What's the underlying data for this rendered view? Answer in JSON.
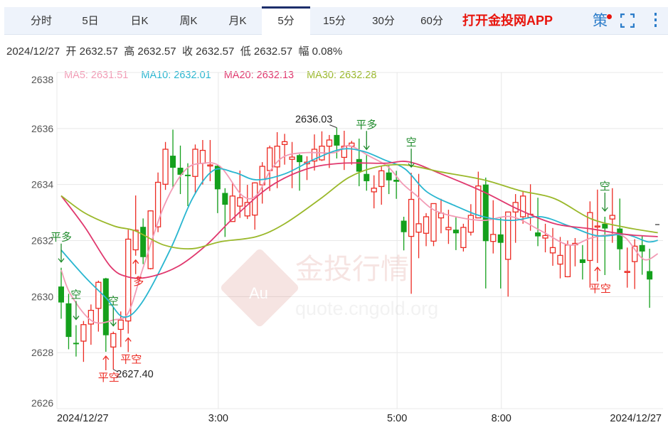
{
  "tabs": [
    {
      "label": "分时",
      "active": false
    },
    {
      "label": "5日",
      "active": false
    },
    {
      "label": "日K",
      "active": false
    },
    {
      "label": "周K",
      "active": false
    },
    {
      "label": "月K",
      "active": false
    },
    {
      "label": "5分",
      "active": true
    },
    {
      "label": "15分",
      "active": false
    },
    {
      "label": "30分",
      "active": false
    },
    {
      "label": "60分",
      "active": false
    }
  ],
  "header": {
    "app_link": "打开金投网APP",
    "strategy_label": "策",
    "icons": [
      "fullscreen-icon",
      "more-vertical-icon"
    ]
  },
  "info": {
    "date": "2024/12/27",
    "open_label": "开",
    "open": "2632.57",
    "high_label": "高",
    "high": "2632.57",
    "close_label": "收",
    "close": "2632.57",
    "low_label": "低",
    "low": "2632.57",
    "change_label": "幅",
    "change": "0.08%"
  },
  "ma_legend": [
    {
      "text": "MA5: 2631.51",
      "color": "#f29bb5"
    },
    {
      "text": "MA10: 2632.01",
      "color": "#29b6d0"
    },
    {
      "text": "MA20: 2632.13",
      "color": "#e0386e"
    },
    {
      "text": "MA30: 2632.28",
      "color": "#9ab82a"
    }
  ],
  "watermark": {
    "cn": "金投行情",
    "url": "quote.cngold.org",
    "logo": "Au"
  },
  "colors": {
    "up": "#ec2b23",
    "down": "#14a01c",
    "grid": "#e8e8e8",
    "tab_active_border": "#1c2e6b"
  },
  "chart_data": {
    "type": "candlestick",
    "interval": "5分",
    "ylim": [
      2626,
      2638
    ],
    "y_ticks": [
      "2638",
      "2636",
      "2634",
      "2632",
      "2630",
      "2628",
      "2626"
    ],
    "x_ticks": [
      {
        "label": "2024/12/27",
        "i": 0
      },
      {
        "label": "3:00",
        "i": 21
      },
      {
        "label": "5:00",
        "i": 45
      },
      {
        "label": "8:00",
        "i": 59
      },
      {
        "label": "2024/12/27",
        "i": 79
      }
    ],
    "grid": true,
    "ohlc": [
      [
        2630.36,
        2631.03,
        2629.21,
        2629.79
      ],
      [
        2629.76,
        2630.1,
        2628.12,
        2628.56
      ],
      [
        2628.35,
        2628.98,
        2627.86,
        2628.3
      ],
      [
        2628.41,
        2629.13,
        2627.67,
        2629.0
      ],
      [
        2629.02,
        2629.72,
        2628.28,
        2629.51
      ],
      [
        2629.58,
        2630.57,
        2628.75,
        2630.51
      ],
      [
        2630.65,
        2630.67,
        2628.03,
        2628.62
      ],
      [
        2628.2,
        2628.75,
        2627.4,
        2628.68
      ],
      [
        2628.83,
        2629.47,
        2628.2,
        2629.16
      ],
      [
        2629.13,
        2632.39,
        2628.68,
        2632.05
      ],
      [
        2631.67,
        2633.61,
        2631.46,
        2632.37
      ],
      [
        2632.49,
        2632.79,
        2631.16,
        2631.41
      ],
      [
        2631.0,
        2633.08,
        2630.97,
        2633.06
      ],
      [
        2632.49,
        2634.43,
        2632.3,
        2634.08
      ],
      [
        2634.01,
        2635.52,
        2633.81,
        2635.26
      ],
      [
        2635.03,
        2635.96,
        2633.87,
        2634.6
      ],
      [
        2634.6,
        2635.39,
        2633.66,
        2634.35
      ],
      [
        2634.35,
        2634.76,
        2633.23,
        2634.3
      ],
      [
        2634.29,
        2635.43,
        2633.7,
        2635.26
      ],
      [
        2634.76,
        2635.59,
        2634.0,
        2635.22
      ],
      [
        2634.67,
        2635.59,
        2634.12,
        2634.7
      ],
      [
        2634.67,
        2634.69,
        2632.98,
        2633.83
      ],
      [
        2633.7,
        2633.87,
        2632.13,
        2633.28
      ],
      [
        2632.68,
        2634.04,
        2632.68,
        2633.59
      ],
      [
        2633.23,
        2634.5,
        2632.81,
        2633.53
      ],
      [
        2632.88,
        2633.99,
        2632.77,
        2633.36
      ],
      [
        2632.91,
        2634.08,
        2632.39,
        2634.06
      ],
      [
        2633.99,
        2634.8,
        2633.32,
        2634.65
      ],
      [
        2634.5,
        2635.39,
        2633.77,
        2635.31
      ],
      [
        2634.63,
        2635.87,
        2633.87,
        2635.37
      ],
      [
        2635.43,
        2635.81,
        2634.71,
        2635.53
      ],
      [
        2634.9,
        2635.52,
        2633.87,
        2634.98
      ],
      [
        2635.05,
        2635.09,
        2633.78,
        2634.8
      ],
      [
        2634.74,
        2635.01,
        2634.16,
        2634.8
      ],
      [
        2634.84,
        2635.79,
        2634.5,
        2635.26
      ],
      [
        2634.88,
        2635.9,
        2634.84,
        2635.37
      ],
      [
        2635.37,
        2635.77,
        2634.59,
        2635.59
      ],
      [
        2635.77,
        2636.03,
        2634.93,
        2635.39
      ],
      [
        2634.97,
        2635.92,
        2634.52,
        2635.37
      ],
      [
        2635.37,
        2635.56,
        2634.71,
        2635.48
      ],
      [
        2634.91,
        2635.64,
        2633.94,
        2634.46
      ],
      [
        2634.38,
        2635.05,
        2633.78,
        2634.12
      ],
      [
        2633.74,
        2634.33,
        2633.15,
        2633.87
      ],
      [
        2633.93,
        2634.67,
        2633.28,
        2634.49
      ],
      [
        2634.43,
        2634.67,
        2633.66,
        2634.15
      ],
      [
        2634.17,
        2634.49,
        2633.49,
        2634.1
      ],
      [
        2632.71,
        2632.85,
        2631.65,
        2632.3
      ],
      [
        2632.15,
        2634.42,
        2630.1,
        2633.47
      ],
      [
        2632.3,
        2634.38,
        2631.37,
        2632.6
      ],
      [
        2632.26,
        2632.98,
        2631.8,
        2632.85
      ],
      [
        2631.98,
        2633.3,
        2631.8,
        2633.32
      ],
      [
        2632.81,
        2633.49,
        2632.26,
        2632.98
      ],
      [
        2632.39,
        2633.1,
        2631.88,
        2632.47
      ],
      [
        2632.39,
        2632.83,
        2631.66,
        2632.26
      ],
      [
        2631.75,
        2632.6,
        2631.61,
        2632.47
      ],
      [
        2632.3,
        2633.3,
        2632.18,
        2632.9
      ],
      [
        2632.81,
        2634.46,
        2632.81,
        2633.95
      ],
      [
        2634.0,
        2634.25,
        2630.29,
        2631.98
      ],
      [
        2631.97,
        2633.44,
        2631.54,
        2632.22
      ],
      [
        2632.22,
        2632.83,
        2630.29,
        2631.92
      ],
      [
        2631.33,
        2633.02,
        2630.0,
        2633.02
      ],
      [
        2633.02,
        2633.66,
        2631.92,
        2633.36
      ],
      [
        2632.85,
        2633.76,
        2632.6,
        2633.59
      ],
      [
        2632.83,
        2634.01,
        2632.35,
        2632.94
      ],
      [
        2632.29,
        2633.53,
        2631.8,
        2632.15
      ],
      [
        2632.09,
        2632.6,
        2631.58,
        2632.18
      ],
      [
        2631.56,
        2632.45,
        2631.1,
        2631.75
      ],
      [
        2631.16,
        2632.13,
        2630.65,
        2631.47
      ],
      [
        2630.71,
        2632.0,
        2630.69,
        2631.84
      ],
      [
        2631.85,
        2632.09,
        2631.08,
        2631.9
      ],
      [
        2631.33,
        2631.84,
        2630.61,
        2631.2
      ],
      [
        2631.29,
        2633.4,
        2630.32,
        2633.0
      ],
      [
        2632.5,
        2633.82,
        2631.2,
        2632.52
      ],
      [
        2632.6,
        2632.85,
        2630.77,
        2632.43
      ],
      [
        2632.77,
        2633.87,
        2631.92,
        2632.9
      ],
      [
        2632.43,
        2633.5,
        2630.95,
        2631.69
      ],
      [
        2630.88,
        2631.75,
        2630.32,
        2630.9
      ],
      [
        2631.25,
        2632.05,
        2630.27,
        2631.8
      ],
      [
        2631.84,
        2632.18,
        2630.78,
        2631.61
      ],
      [
        2630.91,
        2631.71,
        2629.6,
        2630.61
      ]
    ],
    "ma": [
      {
        "name": "MA5",
        "color": "#f29bb5",
        "points": [
          [
            0,
            2630.95
          ],
          [
            1.3,
            2630.06
          ],
          [
            4.2,
            2629.12
          ],
          [
            7.1,
            2629.17
          ],
          [
            9,
            2629.42
          ],
          [
            10.9,
            2630.95
          ],
          [
            13.8,
            2633.23
          ],
          [
            16.6,
            2634.5
          ],
          [
            19,
            2634.76
          ],
          [
            21.4,
            2634.63
          ],
          [
            24.3,
            2633.61
          ],
          [
            26.2,
            2633.61
          ],
          [
            28.1,
            2634.5
          ],
          [
            30,
            2635.01
          ],
          [
            32.9,
            2635.14
          ],
          [
            36.7,
            2635.14
          ],
          [
            38.6,
            2635.39
          ],
          [
            41.4,
            2635.01
          ],
          [
            43.9,
            2634.63
          ],
          [
            45.8,
            2634.04
          ],
          [
            47.7,
            2633.61
          ],
          [
            50,
            2633.1
          ],
          [
            53,
            2632.85
          ],
          [
            56.7,
            2632.72
          ],
          [
            60.5,
            2632.85
          ],
          [
            64.4,
            2632.35
          ],
          [
            68.2,
            2631.84
          ],
          [
            71.1,
            2632.09
          ],
          [
            74,
            2632.22
          ],
          [
            75.8,
            2632.09
          ],
          [
            78.2,
            2631.33
          ],
          [
            80.1,
            2631.53
          ]
        ]
      },
      {
        "name": "MA10",
        "color": "#29b6d0",
        "points": [
          [
            0,
            2631.66
          ],
          [
            3.2,
            2630.7
          ],
          [
            6.1,
            2629.93
          ],
          [
            8.4,
            2629.27
          ],
          [
            10.9,
            2629.81
          ],
          [
            14.7,
            2631.71
          ],
          [
            17.6,
            2633.49
          ],
          [
            20.4,
            2634.5
          ],
          [
            23.3,
            2634.43
          ],
          [
            26.2,
            2634.17
          ],
          [
            30,
            2634.38
          ],
          [
            33.8,
            2634.88
          ],
          [
            37.6,
            2635.26
          ],
          [
            40.5,
            2635.19
          ],
          [
            43.4,
            2634.88
          ],
          [
            46.2,
            2634.55
          ],
          [
            49.1,
            2633.74
          ],
          [
            53,
            2633.23
          ],
          [
            56.7,
            2632.85
          ],
          [
            60.5,
            2632.72
          ],
          [
            64.4,
            2632.85
          ],
          [
            68.2,
            2632.52
          ],
          [
            72,
            2632.17
          ],
          [
            75.8,
            2632.22
          ],
          [
            78.7,
            2631.96
          ],
          [
            80.1,
            2632.01
          ]
        ]
      },
      {
        "name": "MA20",
        "color": "#e0386e",
        "points": [
          [
            0,
            2633.6
          ],
          [
            3.2,
            2632.47
          ],
          [
            6.6,
            2631.08
          ],
          [
            9,
            2630.7
          ],
          [
            11.8,
            2630.7
          ],
          [
            15.7,
            2631.08
          ],
          [
            19.5,
            2631.84
          ],
          [
            23.3,
            2632.85
          ],
          [
            28.1,
            2633.94
          ],
          [
            32.9,
            2634.55
          ],
          [
            37.6,
            2634.76
          ],
          [
            43.4,
            2634.76
          ],
          [
            46.7,
            2634.81
          ],
          [
            51,
            2634.38
          ],
          [
            56.7,
            2633.74
          ],
          [
            61.5,
            2633.1
          ],
          [
            66.3,
            2632.6
          ],
          [
            71.1,
            2632.42
          ],
          [
            75.8,
            2632.22
          ],
          [
            80.1,
            2632.14
          ]
        ]
      },
      {
        "name": "MA30",
        "color": "#9ab82a",
        "points": [
          [
            0,
            2633.6
          ],
          [
            3.2,
            2632.98
          ],
          [
            7.1,
            2632.52
          ],
          [
            9.9,
            2632.35
          ],
          [
            13.8,
            2631.84
          ],
          [
            17.6,
            2631.71
          ],
          [
            21.4,
            2631.96
          ],
          [
            26.2,
            2632.14
          ],
          [
            30,
            2632.6
          ],
          [
            34.8,
            2633.49
          ],
          [
            38.6,
            2634.25
          ],
          [
            42.4,
            2634.63
          ],
          [
            46.2,
            2634.7
          ],
          [
            51,
            2634.45
          ],
          [
            56.7,
            2634.17
          ],
          [
            61.5,
            2633.79
          ],
          [
            66.3,
            2633.49
          ],
          [
            71.1,
            2632.78
          ],
          [
            75.8,
            2632.47
          ],
          [
            80.1,
            2632.28
          ]
        ]
      }
    ],
    "annotations": {
      "high": {
        "label": "2636.03",
        "i": 37
      },
      "low": {
        "label": "2627.40",
        "i": 7
      },
      "signals": [
        {
          "i": 0,
          "text": "平多",
          "dir": "down",
          "side": "sell"
        },
        {
          "i": 2,
          "text": "空",
          "dir": "down",
          "side": "sell"
        },
        {
          "i": 7,
          "text": "空",
          "dir": "down",
          "side": "sell"
        },
        {
          "i": 6,
          "text": "平空",
          "dir": "up",
          "side": "buy"
        },
        {
          "i": 9,
          "text": "平空",
          "dir": "up",
          "side": "buy"
        },
        {
          "i": 10,
          "text": "多",
          "dir": "up",
          "side": "buy"
        },
        {
          "i": 41,
          "text": "平多",
          "dir": "down",
          "side": "sell"
        },
        {
          "i": 47,
          "text": "空",
          "dir": "down",
          "side": "sell"
        },
        {
          "i": 73,
          "text": "空",
          "dir": "down",
          "side": "sell"
        },
        {
          "i": 72,
          "text": "平空",
          "dir": "up",
          "side": "buy"
        }
      ]
    }
  }
}
